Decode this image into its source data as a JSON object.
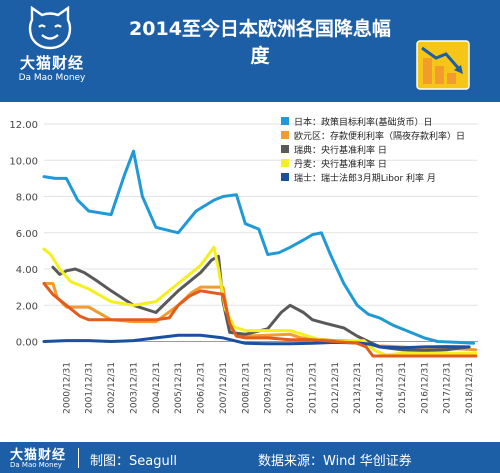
{
  "header": {
    "brand": "大猫财经",
    "brand_en": "Da Mao Money",
    "title": "2014至今日本欧洲各国降息幅度"
  },
  "footer": {
    "brand": "大猫财经",
    "brand_en": "Da Mao Money",
    "maker": "制图：Seagull",
    "source": "数据来源：Wind  华创证券"
  },
  "colors": {
    "header_bg": "#1d5fa6",
    "japan": "#1f9ad6",
    "euro": "#f39b2f",
    "sweden": "#595959",
    "denmark": "#f5ef1e",
    "switzerland": "#1b4fa0",
    "ecb_area": "#e25c1d"
  },
  "chart_data": {
    "type": "line",
    "title": "",
    "xlabel": "",
    "ylabel": "",
    "ylim": [
      -0.8,
      12.0
    ],
    "yticks": [
      "12.00",
      "10.00",
      "8.00",
      "6.00",
      "4.00",
      "2.00",
      "0.00"
    ],
    "xticks": [
      "2000/12/31",
      "2001/12/31",
      "2002/12/31",
      "2003/12/31",
      "2004/12/31",
      "2005/12/31",
      "2006/12/31",
      "2007/12/31",
      "2008/12/31",
      "2009/12/31",
      "2010/12/31",
      "2011/12/31",
      "2012/12/31",
      "2013/12/31",
      "2014/12/31",
      "2015/12/31",
      "2016/12/31",
      "2017/12/31",
      "2018/12/31"
    ],
    "x_domain": [
      2000,
      2019.4
    ],
    "legend_position": "top-right",
    "series": [
      {
        "name": "日本：政策目标利率(基础货币）日",
        "color": "#1f9ad6",
        "points": [
          [
            2000.0,
            9.1
          ],
          [
            2000.5,
            9.0
          ],
          [
            2001.0,
            9.0
          ],
          [
            2001.5,
            7.8
          ],
          [
            2002.0,
            7.2
          ],
          [
            2003.0,
            7.0
          ],
          [
            2003.6,
            9.2
          ],
          [
            2004.0,
            10.5
          ],
          [
            2004.4,
            8.0
          ],
          [
            2005.0,
            6.3
          ],
          [
            2006.0,
            6.0
          ],
          [
            2006.8,
            7.2
          ],
          [
            2007.6,
            7.8
          ],
          [
            2008.0,
            8.0
          ],
          [
            2008.6,
            8.1
          ],
          [
            2009.0,
            6.5
          ],
          [
            2009.6,
            6.2
          ],
          [
            2010.0,
            4.8
          ],
          [
            2010.5,
            4.9
          ],
          [
            2011.0,
            5.2
          ],
          [
            2011.6,
            5.6
          ],
          [
            2012.0,
            5.9
          ],
          [
            2012.4,
            6.0
          ],
          [
            2012.8,
            4.8
          ],
          [
            2013.4,
            3.2
          ],
          [
            2014.0,
            2.0
          ],
          [
            2014.5,
            1.5
          ],
          [
            2015.0,
            1.3
          ],
          [
            2015.6,
            0.9
          ],
          [
            2016.2,
            0.6
          ],
          [
            2017.0,
            0.2
          ],
          [
            2017.6,
            0.0
          ],
          [
            2018.5,
            -0.05
          ],
          [
            2019.2,
            -0.1
          ]
        ]
      },
      {
        "name": "欧元区：存款便利利率（隔夜存款利率）日",
        "color": "#f39b2f",
        "points": [
          [
            2000.0,
            3.2
          ],
          [
            2000.4,
            3.2
          ],
          [
            2000.6,
            2.4
          ],
          [
            2001.0,
            1.9
          ],
          [
            2002.0,
            1.9
          ],
          [
            2003.0,
            1.2
          ],
          [
            2004.0,
            1.1
          ],
          [
            2005.0,
            1.1
          ],
          [
            2006.0,
            2.0
          ],
          [
            2006.6,
            2.7
          ],
          [
            2007.0,
            3.0
          ],
          [
            2008.0,
            3.0
          ],
          [
            2008.3,
            0.8
          ],
          [
            2008.6,
            0.35
          ],
          [
            2009.0,
            0.3
          ],
          [
            2010.0,
            0.35
          ],
          [
            2011.0,
            0.4
          ],
          [
            2011.5,
            0.2
          ],
          [
            2012.0,
            0.15
          ],
          [
            2013.0,
            0.05
          ],
          [
            2014.0,
            0.02
          ],
          [
            2014.5,
            -0.1
          ],
          [
            2015.0,
            -0.25
          ],
          [
            2016.0,
            -0.3
          ],
          [
            2017.0,
            -0.4
          ],
          [
            2018.5,
            -0.4
          ],
          [
            2019.3,
            -0.45
          ]
        ]
      },
      {
        "name": "瑞典：央行基准利率 日",
        "color": "#595959",
        "points": [
          [
            2000.4,
            4.1
          ],
          [
            2000.7,
            3.7
          ],
          [
            2001.0,
            3.9
          ],
          [
            2001.4,
            4.0
          ],
          [
            2001.8,
            3.8
          ],
          [
            2002.3,
            3.4
          ],
          [
            2003.0,
            2.8
          ],
          [
            2004.0,
            2.0
          ],
          [
            2005.0,
            1.6
          ],
          [
            2006.0,
            2.8
          ],
          [
            2007.0,
            3.8
          ],
          [
            2007.5,
            4.5
          ],
          [
            2007.8,
            4.7
          ],
          [
            2008.0,
            2.2
          ],
          [
            2008.3,
            0.5
          ],
          [
            2009.0,
            0.4
          ],
          [
            2010.0,
            0.7
          ],
          [
            2010.6,
            1.6
          ],
          [
            2011.0,
            2.0
          ],
          [
            2011.6,
            1.6
          ],
          [
            2012.0,
            1.2
          ],
          [
            2012.6,
            1.0
          ],
          [
            2013.4,
            0.75
          ],
          [
            2014.0,
            0.3
          ],
          [
            2014.5,
            0.0
          ],
          [
            2015.0,
            -0.3
          ],
          [
            2016.0,
            -0.45
          ],
          [
            2017.0,
            -0.5
          ],
          [
            2018.0,
            -0.45
          ],
          [
            2019.0,
            -0.3
          ]
        ]
      },
      {
        "name": "丹麦：央行基准利率 日",
        "color": "#f5ef1e",
        "points": [
          [
            2000.0,
            5.1
          ],
          [
            2000.3,
            4.8
          ],
          [
            2000.7,
            4.0
          ],
          [
            2001.2,
            3.3
          ],
          [
            2002.0,
            2.9
          ],
          [
            2003.0,
            2.2
          ],
          [
            2004.0,
            2.0
          ],
          [
            2005.0,
            2.2
          ],
          [
            2006.0,
            3.2
          ],
          [
            2007.0,
            4.2
          ],
          [
            2007.6,
            5.2
          ],
          [
            2007.8,
            4.0
          ],
          [
            2008.1,
            1.8
          ],
          [
            2008.5,
            0.8
          ],
          [
            2009.0,
            0.6
          ],
          [
            2010.0,
            0.6
          ],
          [
            2011.0,
            0.6
          ],
          [
            2011.8,
            0.3
          ],
          [
            2012.6,
            0.0
          ],
          [
            2013.5,
            0.0
          ],
          [
            2014.3,
            0.05
          ],
          [
            2014.8,
            -0.5
          ],
          [
            2015.3,
            -0.75
          ],
          [
            2016.0,
            -0.65
          ],
          [
            2017.0,
            -0.65
          ],
          [
            2018.0,
            -0.65
          ],
          [
            2019.3,
            -0.65
          ]
        ]
      },
      {
        "name": "瑞士：瑞士法郎3月期Libor 利率 月",
        "color": "#1b4fa0",
        "points": [
          [
            2000.0,
            0.0
          ],
          [
            2001.0,
            0.05
          ],
          [
            2002.0,
            0.05
          ],
          [
            2003.0,
            0.0
          ],
          [
            2004.0,
            0.05
          ],
          [
            2005.0,
            0.2
          ],
          [
            2006.0,
            0.35
          ],
          [
            2007.0,
            0.35
          ],
          [
            2008.0,
            0.2
          ],
          [
            2009.0,
            -0.1
          ],
          [
            2010.0,
            -0.12
          ],
          [
            2011.0,
            -0.12
          ],
          [
            2012.0,
            -0.1
          ],
          [
            2013.0,
            -0.05
          ],
          [
            2014.0,
            -0.08
          ],
          [
            2014.6,
            -0.15
          ],
          [
            2015.0,
            -0.3
          ],
          [
            2016.0,
            -0.35
          ],
          [
            2017.0,
            -0.3
          ],
          [
            2018.0,
            -0.28
          ],
          [
            2019.0,
            -0.3
          ]
        ]
      },
      {
        "color": "#e25c1d",
        "points": [
          [
            2000.0,
            3.2
          ],
          [
            2000.4,
            2.6
          ],
          [
            2001.0,
            2.0
          ],
          [
            2001.6,
            1.4
          ],
          [
            2002.0,
            1.2
          ],
          [
            2003.0,
            1.2
          ],
          [
            2004.0,
            1.2
          ],
          [
            2005.0,
            1.2
          ],
          [
            2005.6,
            1.3
          ],
          [
            2006.0,
            2.0
          ],
          [
            2006.5,
            2.5
          ],
          [
            2007.0,
            2.8
          ],
          [
            2008.0,
            2.6
          ],
          [
            2008.3,
            1.0
          ],
          [
            2008.6,
            0.3
          ],
          [
            2009.0,
            0.2
          ],
          [
            2010.0,
            0.2
          ],
          [
            2011.0,
            0.1
          ],
          [
            2012.0,
            0.1
          ],
          [
            2013.0,
            0.0
          ],
          [
            2014.0,
            -0.1
          ],
          [
            2014.4,
            -0.3
          ],
          [
            2014.7,
            -0.8
          ],
          [
            2016.0,
            -0.8
          ],
          [
            2017.0,
            -0.8
          ],
          [
            2018.0,
            -0.8
          ],
          [
            2019.3,
            -0.8
          ]
        ]
      }
    ]
  }
}
